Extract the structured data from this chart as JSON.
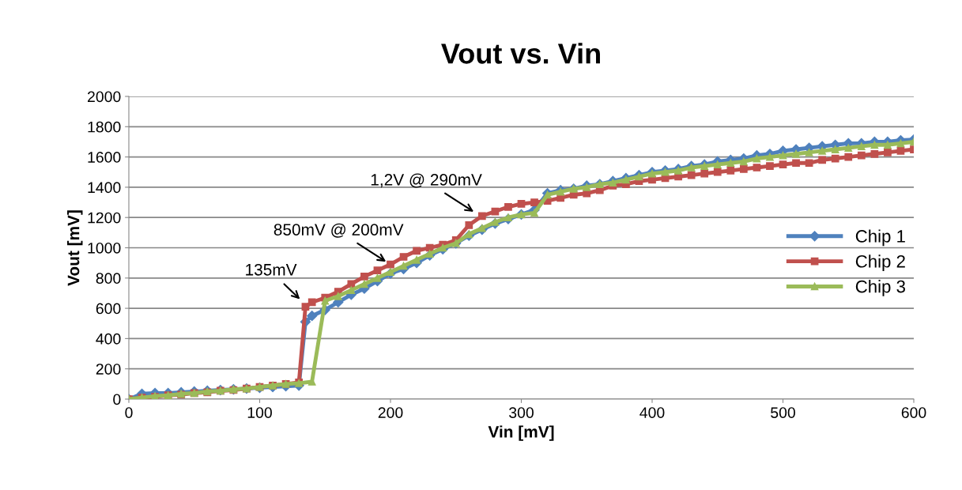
{
  "chart_data": {
    "type": "line",
    "title": "Vout vs. Vin",
    "xlabel": "Vin [mV]",
    "ylabel": "Vout [mV]",
    "xlim": [
      0,
      600
    ],
    "xticks": [
      0,
      100,
      200,
      300,
      400,
      500,
      600
    ],
    "ylim": [
      0,
      2000
    ],
    "yticks": [
      0,
      200,
      400,
      600,
      800,
      1000,
      1200,
      1400,
      1600,
      1800,
      2000
    ],
    "grid": "y",
    "legend": "right",
    "line_style": "solid",
    "series": [
      {
        "name": "Chip 1",
        "color": "#4f81bd",
        "marker": "diamond",
        "x": [
          0,
          10,
          20,
          30,
          40,
          50,
          60,
          70,
          80,
          90,
          100,
          110,
          120,
          130,
          135,
          140,
          150,
          160,
          170,
          180,
          190,
          200,
          210,
          220,
          230,
          240,
          250,
          260,
          270,
          280,
          290,
          300,
          310,
          320,
          330,
          340,
          350,
          360,
          370,
          380,
          390,
          400,
          410,
          420,
          430,
          440,
          450,
          460,
          470,
          480,
          490,
          500,
          510,
          520,
          530,
          540,
          550,
          560,
          570,
          580,
          590,
          600
        ],
        "values": [
          0,
          35,
          40,
          40,
          45,
          50,
          55,
          60,
          65,
          70,
          75,
          80,
          85,
          90,
          510,
          550,
          590,
          640,
          690,
          730,
          780,
          830,
          860,
          900,
          950,
          990,
          1030,
          1080,
          1120,
          1160,
          1190,
          1220,
          1250,
          1360,
          1380,
          1390,
          1410,
          1420,
          1440,
          1460,
          1480,
          1500,
          1510,
          1520,
          1540,
          1550,
          1570,
          1580,
          1590,
          1610,
          1620,
          1640,
          1650,
          1660,
          1670,
          1680,
          1690,
          1690,
          1700,
          1700,
          1710,
          1715
        ]
      },
      {
        "name": "Chip 2",
        "color": "#c0504d",
        "marker": "square",
        "x": [
          0,
          10,
          20,
          30,
          40,
          50,
          60,
          70,
          80,
          90,
          100,
          110,
          120,
          130,
          135,
          140,
          150,
          160,
          170,
          180,
          190,
          200,
          210,
          220,
          230,
          240,
          250,
          260,
          270,
          280,
          290,
          300,
          310,
          320,
          330,
          340,
          350,
          360,
          370,
          380,
          390,
          400,
          410,
          420,
          430,
          440,
          450,
          460,
          470,
          480,
          490,
          500,
          510,
          520,
          530,
          540,
          550,
          560,
          570,
          580,
          590,
          600
        ],
        "values": [
          0,
          10,
          15,
          25,
          30,
          40,
          45,
          55,
          60,
          70,
          80,
          90,
          100,
          110,
          610,
          640,
          670,
          710,
          760,
          810,
          850,
          890,
          940,
          980,
          1000,
          1020,
          1050,
          1150,
          1210,
          1240,
          1270,
          1290,
          1300,
          1310,
          1330,
          1350,
          1360,
          1380,
          1410,
          1420,
          1440,
          1450,
          1460,
          1470,
          1480,
          1490,
          1500,
          1510,
          1520,
          1530,
          1540,
          1550,
          1560,
          1560,
          1580,
          1590,
          1600,
          1610,
          1620,
          1630,
          1640,
          1650
        ]
      },
      {
        "name": "Chip 3",
        "color": "#9bbb59",
        "marker": "triangle",
        "x": [
          0,
          10,
          20,
          30,
          40,
          50,
          60,
          70,
          80,
          90,
          100,
          110,
          120,
          130,
          140,
          150,
          160,
          170,
          180,
          190,
          200,
          210,
          220,
          230,
          240,
          250,
          260,
          270,
          280,
          290,
          300,
          310,
          320,
          330,
          340,
          350,
          360,
          370,
          380,
          390,
          400,
          410,
          420,
          430,
          440,
          450,
          460,
          470,
          480,
          490,
          500,
          510,
          520,
          530,
          540,
          550,
          560,
          570,
          580,
          590,
          600
        ],
        "values": [
          0,
          10,
          20,
          25,
          35,
          40,
          50,
          55,
          65,
          70,
          80,
          90,
          100,
          105,
          115,
          650,
          680,
          720,
          760,
          800,
          840,
          880,
          920,
          960,
          1000,
          1030,
          1090,
          1130,
          1170,
          1200,
          1220,
          1230,
          1350,
          1370,
          1390,
          1400,
          1420,
          1430,
          1450,
          1470,
          1490,
          1500,
          1510,
          1530,
          1540,
          1550,
          1560,
          1570,
          1590,
          1600,
          1610,
          1620,
          1630,
          1640,
          1650,
          1660,
          1670,
          1680,
          1680,
          1690,
          1700
        ]
      }
    ],
    "annotations": [
      {
        "text": "135mV",
        "x": 132,
        "y": 650
      },
      {
        "text": "850mV @ 200mV",
        "x": 198,
        "y": 900
      },
      {
        "text": "1,2V @ 290mV",
        "x": 265,
        "y": 1230
      }
    ]
  }
}
